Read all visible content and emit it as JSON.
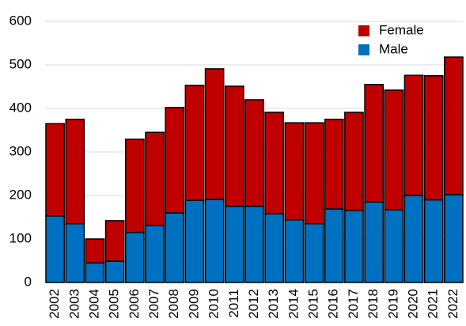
{
  "chart_data": {
    "type": "stacked_bar",
    "categories": [
      "2002",
      "2003",
      "2004",
      "2005",
      "2006",
      "2007",
      "2008",
      "2009",
      "2010",
      "2011",
      "2012",
      "2013",
      "2014",
      "2015",
      "2016",
      "2017",
      "2018",
      "2019",
      "2020",
      "2021",
      "2022"
    ],
    "series": [
      {
        "name": "Male",
        "color": "#0070c0",
        "values": [
          153,
          135,
          45,
          49,
          115,
          131,
          160,
          189,
          191,
          175,
          175,
          158,
          144,
          135,
          169,
          165,
          185,
          167,
          200,
          190,
          202
        ]
      },
      {
        "name": "Female",
        "color": "#c00000",
        "values": [
          212,
          240,
          55,
          93,
          214,
          214,
          242,
          264,
          300,
          276,
          245,
          233,
          223,
          232,
          206,
          226,
          270,
          275,
          276,
          285,
          316
        ]
      }
    ],
    "ylim": [
      0,
      600
    ],
    "yticks": [
      0,
      100,
      200,
      300,
      400,
      500,
      600
    ],
    "grid": true,
    "legend": "top-right"
  }
}
